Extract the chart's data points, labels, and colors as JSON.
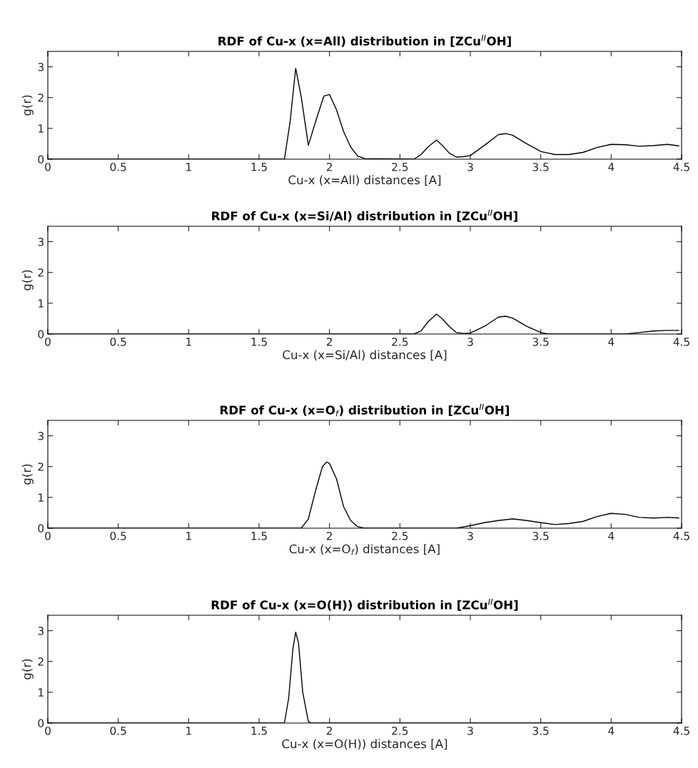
{
  "chart_data": [
    {
      "type": "line",
      "title": "RDF of Cu-x (x=All) distribution in [ZCu$^{II}$OH]",
      "xlabel": "Cu-x (x=All) distances [A]",
      "ylabel": "g(r)",
      "xlim": [
        0,
        4.5
      ],
      "ylim": [
        0,
        3.5
      ],
      "xticks": [
        0,
        0.5,
        1,
        1.5,
        2,
        2.5,
        3,
        3.5,
        4,
        4.5
      ],
      "yticks": [
        0,
        1,
        2,
        3
      ],
      "grid": false,
      "legend": false,
      "series": [
        {
          "color": "#000000",
          "x": [
            0,
            1.68,
            1.72,
            1.76,
            1.8,
            1.85,
            1.9,
            1.96,
            2.0,
            2.05,
            2.1,
            2.15,
            2.2,
            2.25,
            2.6,
            2.65,
            2.7,
            2.76,
            2.8,
            2.85,
            2.9,
            2.95,
            3.0,
            3.1,
            3.2,
            3.25,
            3.3,
            3.4,
            3.5,
            3.6,
            3.7,
            3.8,
            3.9,
            4.0,
            4.1,
            4.2,
            4.3,
            4.4,
            4.48
          ],
          "values": [
            0,
            0,
            1.2,
            2.95,
            2.0,
            0.45,
            1.2,
            2.05,
            2.1,
            1.6,
            0.9,
            0.4,
            0.1,
            0.02,
            0,
            0.15,
            0.4,
            0.62,
            0.45,
            0.2,
            0.07,
            0.08,
            0.12,
            0.45,
            0.8,
            0.83,
            0.78,
            0.5,
            0.25,
            0.15,
            0.15,
            0.22,
            0.38,
            0.48,
            0.47,
            0.42,
            0.44,
            0.48,
            0.43
          ]
        }
      ]
    },
    {
      "type": "line",
      "title": "RDF of Cu-x (x=Si/Al) distribution in [ZCu$^{II}$OH]",
      "xlabel": "Cu-x (x=Si/Al) distances [A]",
      "ylabel": "g(r)",
      "xlim": [
        0,
        4.5
      ],
      "ylim": [
        0,
        3.5
      ],
      "xticks": [
        0,
        0.5,
        1,
        1.5,
        2,
        2.5,
        3,
        3.5,
        4,
        4.5
      ],
      "yticks": [
        0,
        1,
        2,
        3
      ],
      "grid": false,
      "legend": false,
      "series": [
        {
          "color": "#000000",
          "x": [
            0,
            2.6,
            2.65,
            2.7,
            2.76,
            2.8,
            2.85,
            2.9,
            2.95,
            3.0,
            3.1,
            3.2,
            3.25,
            3.3,
            3.4,
            3.5,
            3.55,
            4.1,
            4.2,
            4.3,
            4.4,
            4.48
          ],
          "values": [
            0,
            0,
            0.1,
            0.4,
            0.65,
            0.5,
            0.25,
            0.05,
            0.02,
            0.03,
            0.25,
            0.55,
            0.58,
            0.52,
            0.25,
            0.05,
            0,
            0,
            0.05,
            0.1,
            0.12,
            0.12
          ]
        }
      ]
    },
    {
      "type": "line",
      "title": "RDF of Cu-x (x=O$_{f}$) distribution in [ZCu$^{II}$OH]",
      "xlabel": "Cu-x (x=O$_{f}$) distances [A]",
      "ylabel": "g(r)",
      "xlim": [
        0,
        4.5
      ],
      "ylim": [
        0,
        3.5
      ],
      "xticks": [
        0,
        0.5,
        1,
        1.5,
        2,
        2.5,
        3,
        3.5,
        4,
        4.5
      ],
      "yticks": [
        0,
        1,
        2,
        3
      ],
      "grid": false,
      "legend": false,
      "series": [
        {
          "color": "#000000",
          "x": [
            0,
            1.8,
            1.85,
            1.9,
            1.95,
            1.98,
            2.0,
            2.05,
            2.1,
            2.15,
            2.2,
            2.25,
            2.9,
            3.0,
            3.1,
            3.2,
            3.3,
            3.4,
            3.5,
            3.6,
            3.7,
            3.8,
            3.9,
            4.0,
            4.1,
            4.2,
            4.3,
            4.4,
            4.48
          ],
          "values": [
            0,
            0,
            0.3,
            1.2,
            2.0,
            2.15,
            2.1,
            1.6,
            0.7,
            0.25,
            0.05,
            0,
            0,
            0.08,
            0.18,
            0.25,
            0.3,
            0.25,
            0.18,
            0.12,
            0.15,
            0.22,
            0.38,
            0.48,
            0.45,
            0.35,
            0.33,
            0.35,
            0.33
          ]
        }
      ]
    },
    {
      "type": "line",
      "title": "RDF of Cu-x (x=O(H)) distribution in [ZCu$^{II}$OH]",
      "xlabel": "Cu-x (x=O(H)) distances [A]",
      "ylabel": "g(r)",
      "xlim": [
        0,
        4.5
      ],
      "ylim": [
        0,
        3.5
      ],
      "xticks": [
        0,
        0.5,
        1,
        1.5,
        2,
        2.5,
        3,
        3.5,
        4,
        4.5
      ],
      "yticks": [
        0,
        1,
        2,
        3
      ],
      "grid": false,
      "legend": false,
      "series": [
        {
          "color": "#000000",
          "x": [
            0,
            1.68,
            1.71,
            1.74,
            1.76,
            1.78,
            1.81,
            1.85,
            1.87,
            4.5
          ],
          "values": [
            0,
            0,
            0.8,
            2.4,
            2.95,
            2.6,
            1.0,
            0.05,
            0,
            0
          ]
        }
      ]
    }
  ]
}
